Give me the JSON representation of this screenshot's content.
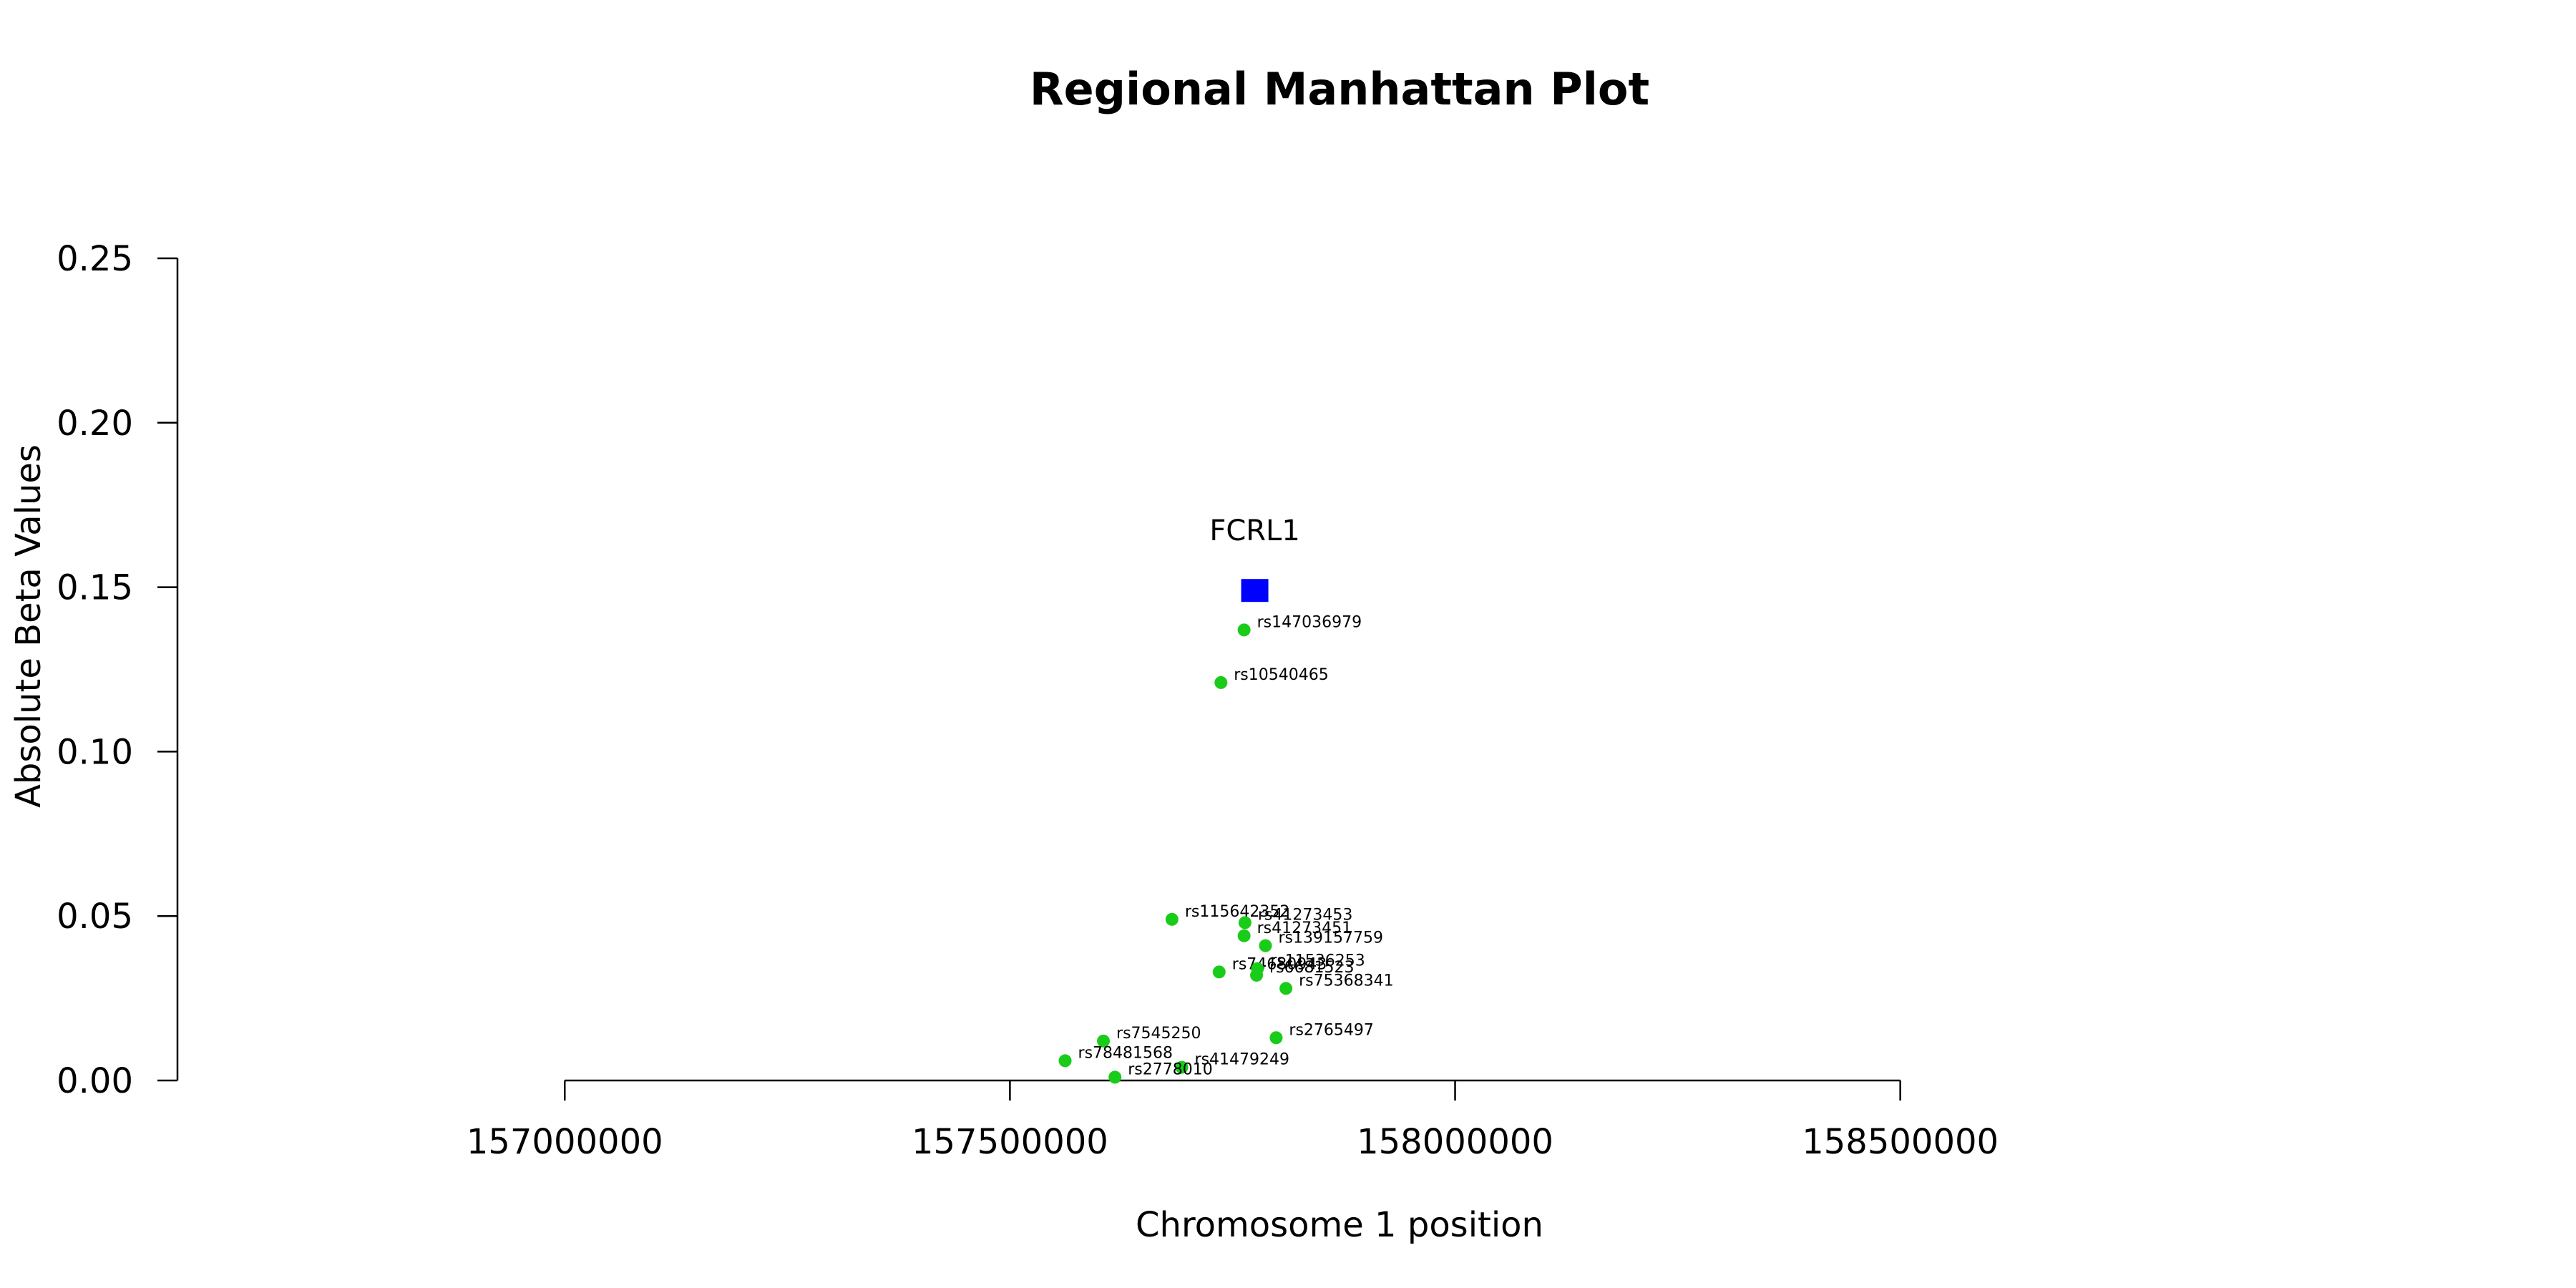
{
  "chart_data": {
    "type": "scatter",
    "title": "Regional Manhattan Plot",
    "xlabel": "Chromosome 1 position",
    "ylabel": "Absolute Beta Values",
    "xlim": [
      156565000,
      159050000
    ],
    "ylim": [
      0,
      0.25
    ],
    "x_ticks": [
      157000000,
      157500000,
      158000000,
      158500000
    ],
    "x_tick_labels": [
      "157000000",
      "157500000",
      "158000000",
      "158500000"
    ],
    "y_ticks": [
      0,
      0.05,
      0.1,
      0.15,
      0.2,
      0.25
    ],
    "y_tick_labels": [
      "0.00",
      "0.05",
      "0.10",
      "0.15",
      "0.20",
      "0.25"
    ],
    "x_axis_range": [
      157000000,
      158500000
    ],
    "grid": false,
    "colors": {
      "snp": "#19cc19",
      "gene": "#0000ff",
      "axis": "#000000"
    },
    "gene": {
      "name": "FCRL1",
      "x": 157775000,
      "y": 0.149,
      "marker": "square"
    },
    "points": [
      {
        "label": "rs147036979",
        "x": 157763000,
        "y": 0.137
      },
      {
        "label": "rs10540465",
        "x": 157737000,
        "y": 0.121
      },
      {
        "label": "rs115642352",
        "x": 157682000,
        "y": 0.049
      },
      {
        "label": "rs41273453",
        "x": 157764000,
        "y": 0.048
      },
      {
        "label": "rs41273451",
        "x": 157763000,
        "y": 0.044
      },
      {
        "label": "rs139157759",
        "x": 157787000,
        "y": 0.041
      },
      {
        "label": "rs74680943",
        "x": 157735000,
        "y": 0.033
      },
      {
        "label": "rs11536253",
        "x": 157778000,
        "y": 0.034
      },
      {
        "label": "rs6681523",
        "x": 157777000,
        "y": 0.032
      },
      {
        "label": "rs75368341",
        "x": 157810000,
        "y": 0.028
      },
      {
        "label": "rs2765497",
        "x": 157799000,
        "y": 0.013
      },
      {
        "label": "rs7545250",
        "x": 157605000,
        "y": 0.012
      },
      {
        "label": "rs78481568",
        "x": 157562000,
        "y": 0.006
      },
      {
        "label": "rs41479249",
        "x": 157693000,
        "y": 0.004
      },
      {
        "label": "rs2778010",
        "x": 157618000,
        "y": 0.001
      }
    ]
  }
}
